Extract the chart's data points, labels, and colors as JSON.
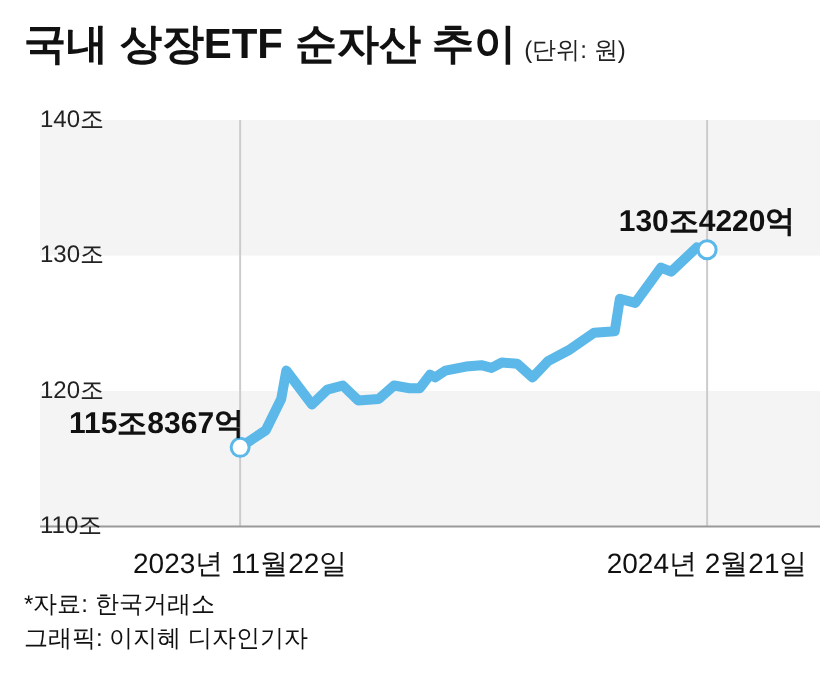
{
  "chart_data": {
    "type": "line",
    "title": "국내 상장ETF 순자산 추이",
    "subtitle": "(단위: 원)",
    "x": [
      "2023-11-22",
      "2023-11-27",
      "2023-11-30",
      "2023-12-01",
      "2023-12-06",
      "2023-12-09",
      "2023-12-12",
      "2023-12-15",
      "2023-12-19",
      "2023-12-22",
      "2023-12-25",
      "2023-12-27",
      "2023-12-29",
      "2023-12-30",
      "2024-01-01",
      "2024-01-05",
      "2024-01-08",
      "2024-01-10",
      "2024-01-12",
      "2024-01-15",
      "2024-01-18",
      "2024-01-21",
      "2024-01-25",
      "2024-01-30",
      "2024-02-03",
      "2024-02-04",
      "2024-02-07",
      "2024-02-12",
      "2024-02-14",
      "2024-02-19",
      "2024-02-21"
    ],
    "series": [
      {
        "color": "#5bb8e8",
        "marker": "none",
        "values": [
          115.8367,
          117.1,
          119.4,
          121.5,
          119.0,
          120.1,
          120.4,
          119.3,
          119.4,
          120.4,
          120.2,
          120.2,
          121.2,
          121.0,
          121.5,
          121.8,
          121.9,
          121.7,
          122.1,
          122.0,
          121.0,
          122.2,
          123.0,
          124.3,
          124.4,
          126.8,
          126.5,
          129.1,
          128.8,
          130.6,
          130.422
        ]
      },
      {
        "type": "scatter",
        "color": "#ffffff",
        "marker": "circle",
        "x": [
          "2023-11-22",
          "2024-02-21"
        ],
        "values": [
          115.8367,
          130.422
        ]
      }
    ],
    "xlim": [
      "2023-10-14",
      "2024-03-14"
    ],
    "xticks": [
      {
        "value": "2023-11-22",
        "label": "2023년 11월22일"
      },
      {
        "value": "2024-02-21",
        "label": "2024년 2월21일"
      }
    ],
    "ylim": [
      110,
      140
    ],
    "yticks": [
      {
        "value": 110,
        "label": "110조"
      },
      {
        "value": 120,
        "label": "120조"
      },
      {
        "value": 130,
        "label": "130조"
      },
      {
        "value": 140,
        "label": "140조"
      }
    ],
    "bands": [
      {
        "axis": "y",
        "from": 110,
        "to": 120,
        "color": "#f4f4f4"
      },
      {
        "axis": "y",
        "from": 130,
        "to": 140,
        "color": "#f4f4f4"
      }
    ],
    "grid": "x",
    "legend": false,
    "line_style": "solid",
    "annotations": [
      {
        "text": "115조8367억",
        "x": "2023-11-22",
        "y": 115.8367
      },
      {
        "text": "130조4220억",
        "x": "2024-02-21",
        "y": 130.422
      },
      "*자료: 한국거래소",
      "그래픽: 이지혜 디자인기자"
    ]
  }
}
